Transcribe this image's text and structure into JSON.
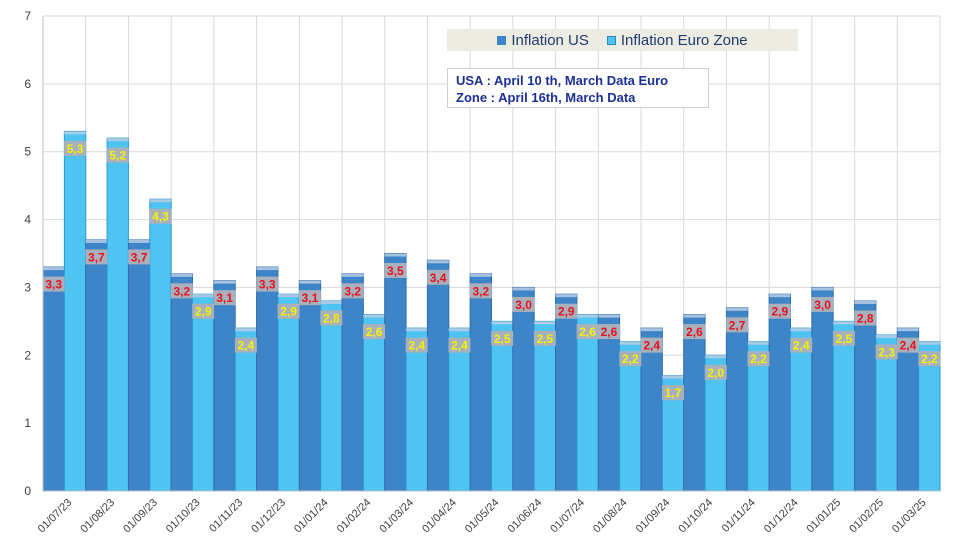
{
  "chart_data": {
    "type": "bar",
    "title": "",
    "xlabel": "",
    "ylabel": "",
    "ylim": [
      0,
      7
    ],
    "yticks": [
      0,
      1,
      2,
      3,
      4,
      5,
      6,
      7
    ],
    "grid": true,
    "legend_position": "top-center",
    "categories": [
      "01/07/23",
      "01/08/23",
      "01/09/23",
      "01/10/23",
      "01/11/23",
      "01/12/23",
      "01/01/24",
      "01/02/24",
      "01/03/24",
      "01/04/24",
      "01/05/24",
      "01/06/24",
      "01/07/24",
      "01/08/24",
      "01/09/24",
      "01/10/24",
      "01/11/24",
      "01/12/24",
      "01/01/25",
      "01/02/25",
      "01/03/25"
    ],
    "series": [
      {
        "name": "Inflation US",
        "values": [
          3.3,
          3.7,
          3.7,
          3.2,
          3.1,
          3.3,
          3.1,
          3.2,
          3.5,
          3.4,
          3.2,
          3.0,
          2.9,
          2.6,
          2.4,
          2.6,
          2.7,
          2.9,
          3.0,
          2.8,
          2.4
        ],
        "labels": [
          "3,3",
          "3,7",
          "3,7",
          "3,2",
          "3,1",
          "3,3",
          "3,1",
          "3,2",
          "3,5",
          "3,4",
          "3,2",
          "3,0",
          "2,9",
          "2,6",
          "2,4",
          "2,6",
          "2,7",
          "2,9",
          "3,0",
          "2,8",
          "2,4"
        ]
      },
      {
        "name": "Inflation Euro Zone",
        "values": [
          5.3,
          5.2,
          4.3,
          2.9,
          2.4,
          2.9,
          2.8,
          2.6,
          2.4,
          2.4,
          2.5,
          2.5,
          2.6,
          2.2,
          1.7,
          2.0,
          2.2,
          2.4,
          2.5,
          2.3,
          2.2
        ],
        "labels": [
          "5,3",
          "5,2",
          "4,3",
          "2,9",
          "2,4",
          "2,9",
          "2,8",
          "2,6",
          "2,4",
          "2,4",
          "2,5",
          "2,5",
          "2,6",
          "2,2",
          "1,7",
          "2,0",
          "2,2",
          "2,4",
          "2,5",
          "2,3",
          "2,2"
        ]
      }
    ],
    "colors": {
      "us": "#3d85c8",
      "euro": "#4fc3f2",
      "us_label": "#e8101e",
      "euro_label": "#f2f20a",
      "label_bg": "#a8b0bc"
    },
    "legend": {
      "us_label": "Inflation US",
      "euro_label": "Inflation Euro Zone"
    },
    "annotation": {
      "line1": "USA : April 10 th, March Data Euro",
      "line2": "Zone : April 16th, March Data"
    }
  }
}
